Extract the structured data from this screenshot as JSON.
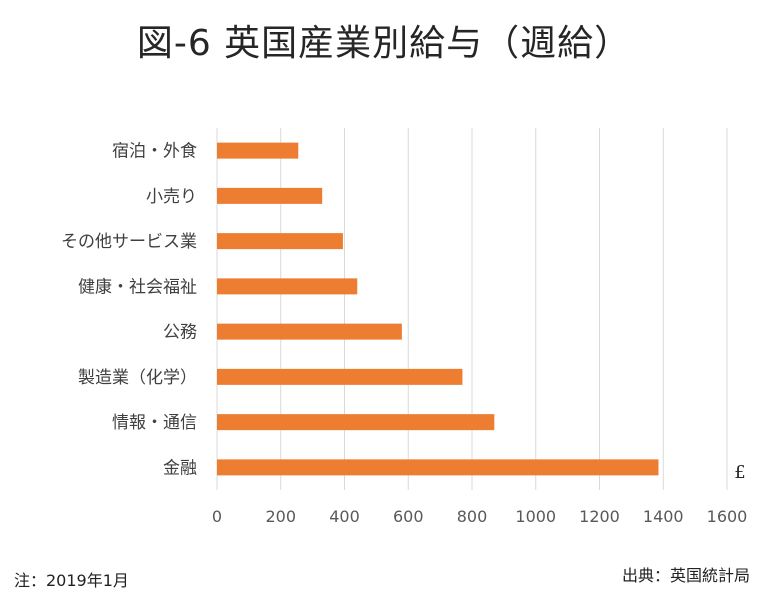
{
  "title": "図-6 英国産業別給与（週給）",
  "note": "注：2019年1月",
  "source": "出典：英国統計局",
  "colors": {
    "bar": "#ed7d31",
    "grid": "#d9d9d9",
    "text": "#595959"
  },
  "chart_data": {
    "type": "bar",
    "orientation": "horizontal",
    "title": "図-6 英国産業別給与（週給）",
    "categories": [
      "宿泊・外食",
      "小売り",
      "その他サービス業",
      "健康・社会福祉",
      "公務",
      "製造業（化学）",
      "情報・通信",
      "金融"
    ],
    "values": [
      255,
      330,
      395,
      440,
      580,
      770,
      870,
      1385
    ],
    "xlim": [
      0,
      1600
    ],
    "xticks": [
      0,
      200,
      400,
      600,
      800,
      1000,
      1200,
      1400,
      1600
    ],
    "unit": "£",
    "grid": true,
    "legend": "none"
  }
}
